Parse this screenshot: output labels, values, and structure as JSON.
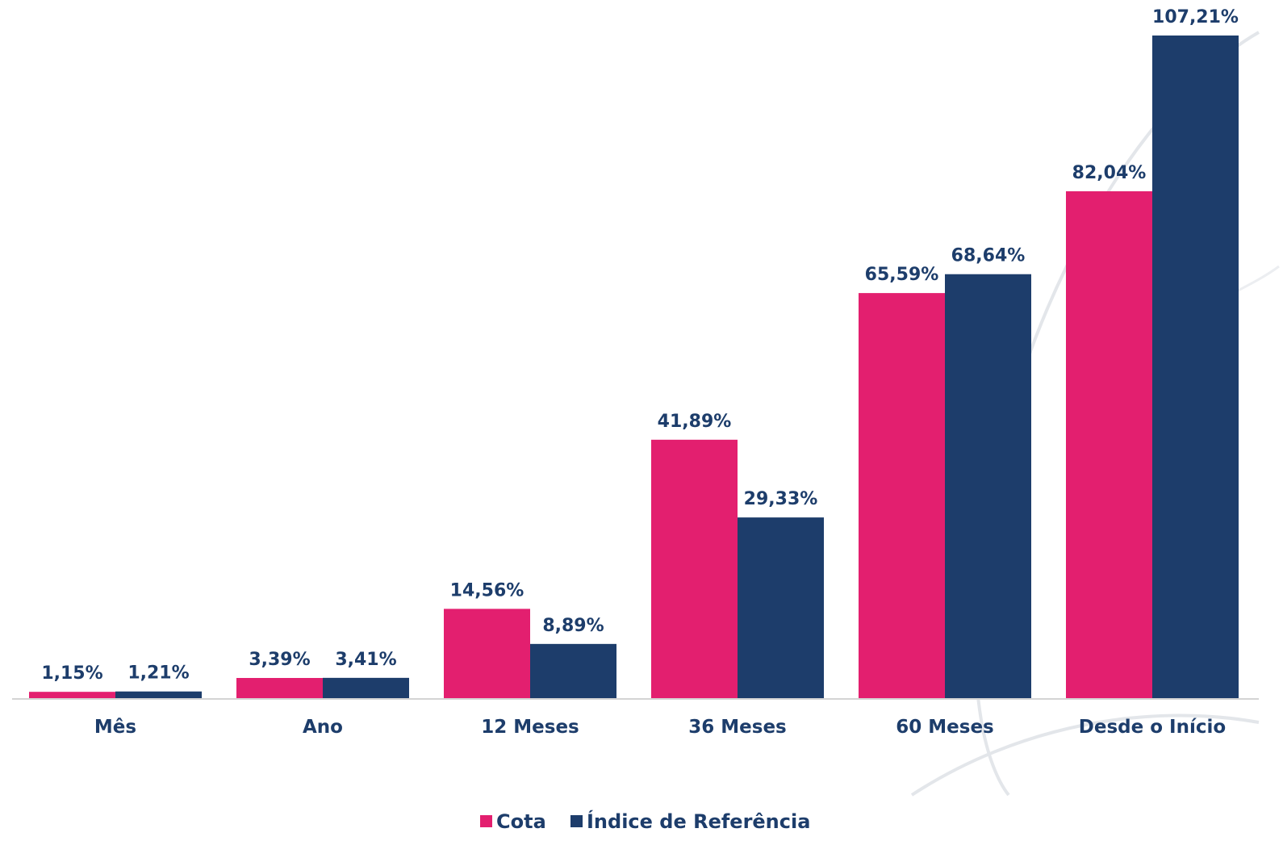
{
  "chart_data": {
    "type": "bar",
    "categories": [
      "Mês",
      "Ano",
      "12 Meses",
      "36 Meses",
      "60 Meses",
      "Desde o Início"
    ],
    "series": [
      {
        "name": "Cota",
        "color": "#e31f6f",
        "values": [
          1.15,
          3.39,
          14.56,
          41.89,
          65.59,
          82.04
        ],
        "labels": [
          "1,15%",
          "3,39%",
          "14,56%",
          "41,89%",
          "65,59%",
          "82,04%"
        ]
      },
      {
        "name": "Índice de Referência",
        "color": "#1d3d6b",
        "values": [
          1.21,
          3.41,
          8.89,
          29.33,
          68.64,
          107.21
        ],
        "labels": [
          "1,21%",
          "3,41%",
          "8,89%",
          "29,33%",
          "68,64%",
          "107,21%"
        ]
      }
    ],
    "title": "",
    "xlabel": "",
    "ylabel": "",
    "ylim": [
      0,
      107.21
    ],
    "grid": false,
    "legend": "bottom-center"
  }
}
